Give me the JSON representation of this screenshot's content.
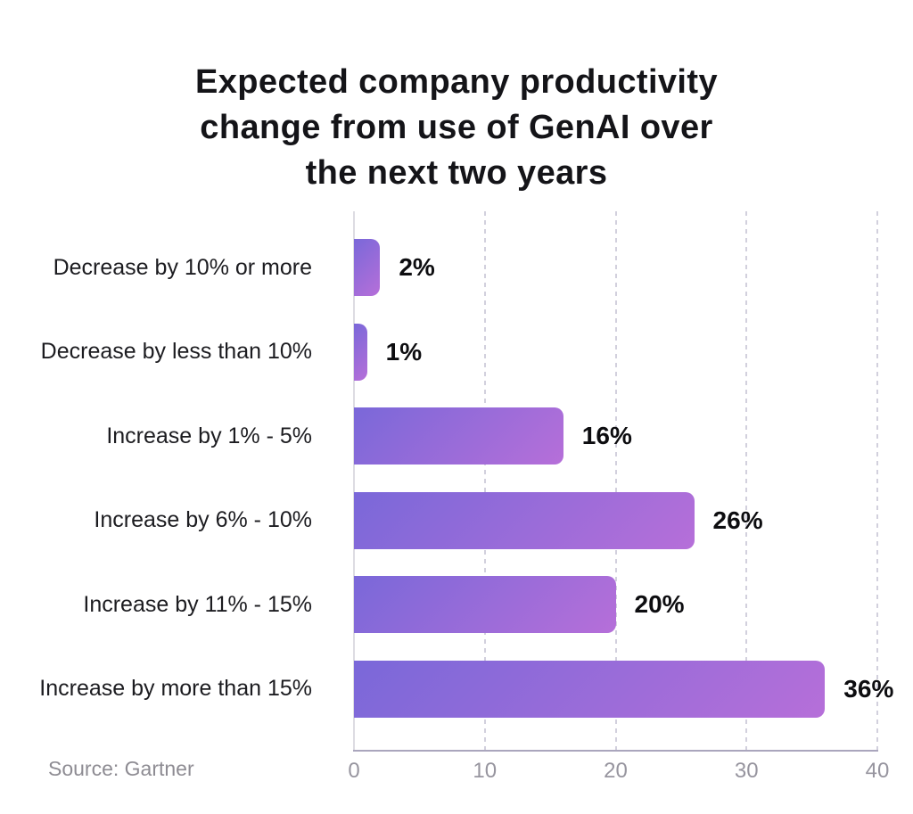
{
  "page": {
    "background": "#ffffff"
  },
  "chart_data": {
    "type": "bar",
    "orientation": "horizontal",
    "title": "Expected company productivity change from use of GenAI over the next two years",
    "title_lines": [
      "Expected company productivity",
      "change from use of GenAI over",
      "the next two years"
    ],
    "categories": [
      "Decrease by 10% or more",
      "Decrease by less than 10%",
      "Increase by 1% - 5%",
      "Increase by 6% - 10%",
      "Increase by 11% - 15%",
      "Increase by more than 15%"
    ],
    "values": [
      2,
      1,
      16,
      26,
      20,
      36
    ],
    "value_labels": [
      "2%",
      "1%",
      "16%",
      "26%",
      "20%",
      "36%"
    ],
    "x_ticks": [
      0,
      10,
      20,
      30,
      40
    ],
    "xlim": [
      0,
      40
    ],
    "grid": "vertical-dashed-at-10-20-30-40",
    "legend": "none",
    "bar_gradient": [
      "#7A68D9",
      "#B66FD9"
    ],
    "source": "Source: Gartner"
  },
  "colors": {
    "title_text": "#141418",
    "category_text": "#1c1c20",
    "value_text": "#0d0d10",
    "tick_text": "#97959f",
    "source_text": "#8e8c93",
    "gridline": "#d2d0dd",
    "zero_axis": "#dddce2",
    "bottom_axis": "#aaa6bd"
  }
}
